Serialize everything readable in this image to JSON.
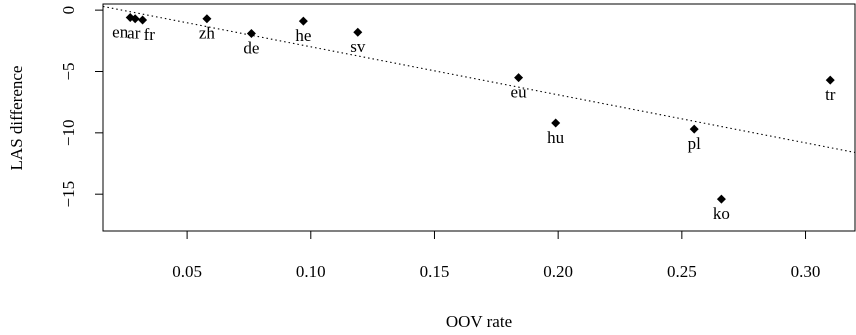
{
  "chart_data": {
    "type": "scatter",
    "xlabel": "OOV rate",
    "ylabel": "LAS difference",
    "xlim": [
      0.016,
      0.32
    ],
    "ylim": [
      -18,
      0.5
    ],
    "x_ticks": [
      "0.05",
      "0.10",
      "0.15",
      "0.20",
      "0.25",
      "0.30"
    ],
    "y_ticks": [
      "0",
      "−5",
      "−10",
      "−15"
    ],
    "points": [
      {
        "label": "en",
        "x": 0.027,
        "y": -0.6
      },
      {
        "label": "ar",
        "x": 0.029,
        "y": -0.7
      },
      {
        "label": "fr",
        "x": 0.032,
        "y": -0.8
      },
      {
        "label": "zh",
        "x": 0.058,
        "y": -0.7
      },
      {
        "label": "de",
        "x": 0.076,
        "y": -1.9
      },
      {
        "label": "he",
        "x": 0.097,
        "y": -0.9
      },
      {
        "label": "sv",
        "x": 0.119,
        "y": -1.8
      },
      {
        "label": "eu",
        "x": 0.184,
        "y": -5.5
      },
      {
        "label": "hu",
        "x": 0.199,
        "y": -9.2
      },
      {
        "label": "pl",
        "x": 0.255,
        "y": -9.7
      },
      {
        "label": "ko",
        "x": 0.266,
        "y": -15.4
      },
      {
        "label": "tr",
        "x": 0.31,
        "y": -5.7
      }
    ],
    "trend_line": {
      "style": "dotted",
      "start": [
        0.016,
        0.3
      ],
      "end": [
        0.32,
        -11.6
      ]
    },
    "grid": false,
    "legend": "none"
  }
}
